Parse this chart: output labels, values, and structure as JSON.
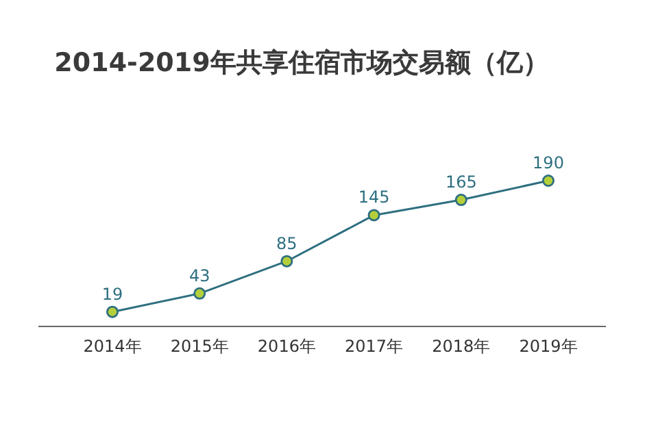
{
  "chart_data": {
    "type": "line",
    "title": "2014-2019年共享住宿市场交易额（亿）",
    "categories": [
      "2014年",
      "2015年",
      "2016年",
      "2017年",
      "2018年",
      "2019年"
    ],
    "values": [
      19,
      43,
      85,
      145,
      165,
      190
    ],
    "color": "#2e6f80",
    "marker": "circle",
    "data_labels": true
  }
}
